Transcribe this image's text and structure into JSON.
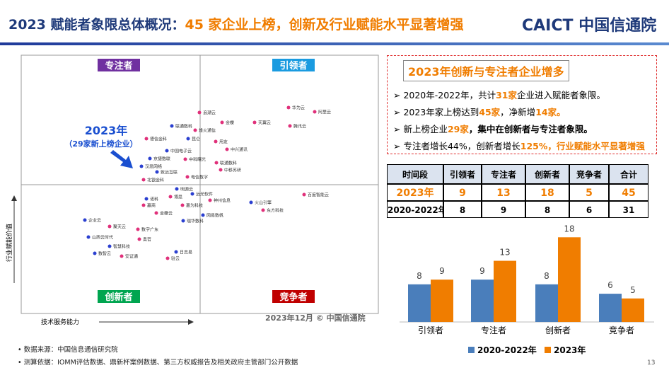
{
  "header": {
    "title_a": "2023 赋能者象限总体概况：",
    "title_b": "45 家企业上榜，创新及行业赋能水平显著增强",
    "logo_a": "CAICT",
    "logo_b": "中国信通院"
  },
  "quadrant": {
    "labels": [
      "专注者",
      "引领者",
      "创新者",
      "竞争者"
    ],
    "colors": [
      "#7030a0",
      "#1a9be0",
      "#00a550",
      "#c00000"
    ],
    "annotation_a": "2023年",
    "annotation_b": "（29家新上榜企业）",
    "x_axis": "技术服务能力",
    "y_axis": "行业赋能价值",
    "stamp": "2023年12月   © 中国信通院",
    "points": [
      "华为云",
      "阿里云",
      "腾讯云",
      "天翼云",
      "金蝶",
      "浪潮云",
      "联通数科",
      "烽火通信",
      "昆仑",
      "用友",
      "德信金科",
      "中兴通讯",
      "中国电子云",
      "京捷数联",
      "中科曙光",
      "联通数科",
      "中移苏研",
      "汉思网络",
      "致远互联",
      "电信数字",
      "北银金科",
      "明源云",
      "远光软件",
      "神州信息",
      "火山引擎",
      "东方科技",
      "百度智能云",
      "诺科",
      "博思",
      "赢商",
      "嘉为科技",
      "金蝶云",
      "网易数帆",
      "瑞华数科",
      "企业云",
      "聚天云",
      "数字广东",
      "山西云时代",
      "奥哲",
      "智慧科技",
      "日志易",
      "数智云",
      "安证通",
      "驻云"
    ]
  },
  "summary": {
    "title": "2023年创新与专注者企业增多",
    "bullets": [
      [
        "2020年-2022年，共计",
        "31家",
        "企业进入赋能者象限。"
      ],
      [
        "2023年家上榜达到",
        "45家",
        "，净新增",
        "14家。"
      ],
      [
        "新上榜企业",
        "29家",
        "，集中在创新者与专注者象限。"
      ],
      [
        "专注者增长44%，创新者增长",
        "125%",
        "，行业赋能水平显著增强"
      ]
    ]
  },
  "table": {
    "header": [
      "时间段",
      "引领者",
      "专注者",
      "创新者",
      "竞争者",
      "合计"
    ],
    "rows": [
      [
        "2023年",
        "9",
        "13",
        "18",
        "5",
        "45"
      ],
      [
        "2020-2022年",
        "8",
        "9",
        "8",
        "6",
        "31"
      ]
    ]
  },
  "chart_data": {
    "type": "bar",
    "categories": [
      "引领者",
      "专注者",
      "创新者",
      "竞争者"
    ],
    "series": [
      {
        "name": "2020-2022年",
        "color": "#4a7ebb",
        "values": [
          8,
          9,
          8,
          6
        ]
      },
      {
        "name": "2023年",
        "color": "#f07d00",
        "values": [
          9,
          13,
          18,
          5
        ]
      }
    ]
  },
  "footer": {
    "notes": [
      "数据来源：中国信息通信研究院",
      "测算依据：IOMM评估数据、鼎新杯案例数据、第三方权威报告及相关政府主管部门公开数据"
    ],
    "page": "13"
  }
}
